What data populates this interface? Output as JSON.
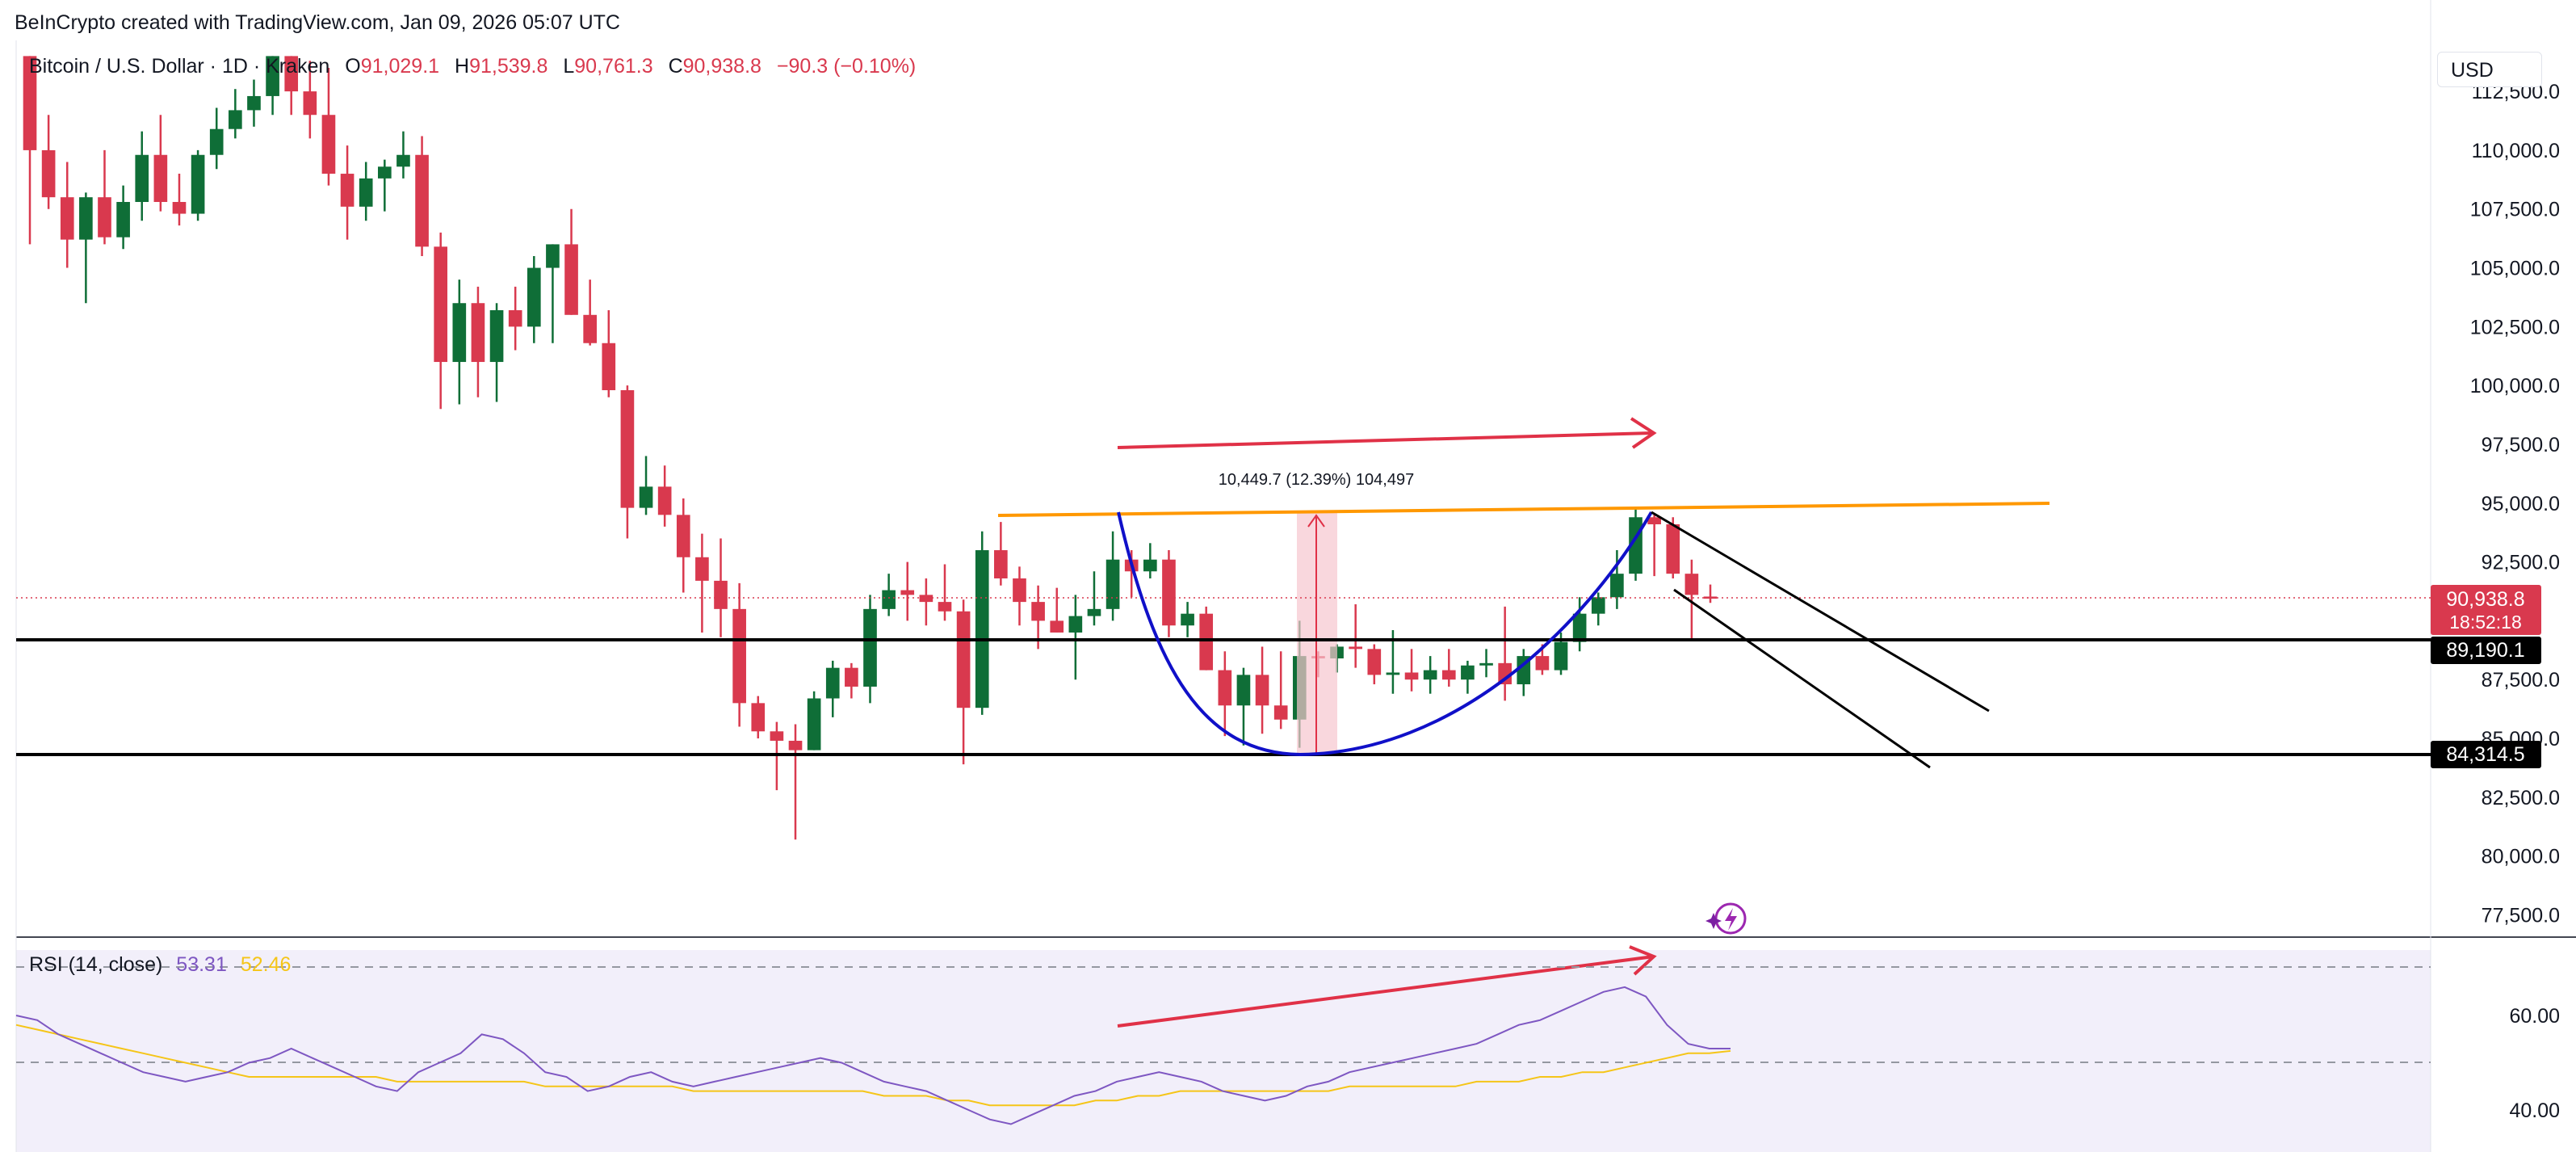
{
  "header": {
    "attribution": "BeInCrypto created with TradingView.com, Jan 09, 2026 05:07 UTC",
    "symbol": "Bitcoin / U.S. Dollar · 1D · Kraken",
    "open_label": "O",
    "open": "91,029.1",
    "high_label": "H",
    "high": "91,539.8",
    "low_label": "L",
    "low": "90,761.3",
    "close_label": "C",
    "close": "90,938.8",
    "change": "−90.3 (−0.10%)"
  },
  "currency_button": "USD",
  "colors": {
    "up": "#0f6e37",
    "down": "#d9394e",
    "wave": "#1010c8",
    "resistance": "#ff9800",
    "arrow": "#e03147",
    "rsi": "#7e57c2",
    "rsi_ma": "#f5c518"
  },
  "annotations": {
    "range_measure": "10,449.7 (12.39%) 104,497",
    "price_tag_current": "90,938.8",
    "price_tag_timer": "18:52:18",
    "price_tag_support": "89,190.1",
    "price_tag_low": "84,314.5"
  },
  "rsi": {
    "label": "RSI (14, close)",
    "value": "53.31",
    "ma_value": "52.46"
  },
  "chart_data": [
    {
      "type": "candlestick",
      "title": "Bitcoin / U.S. Dollar · 1D · Kraken",
      "ylim": [
        76000,
        114000
      ],
      "y_ticks": [
        112500,
        110000,
        107500,
        105000,
        102500,
        100000,
        97500,
        95000,
        92500,
        87500,
        85000,
        82500,
        80000,
        77500
      ],
      "y_tick_labels": [
        "112,500.0",
        "110,000.0",
        "107,500.0",
        "105,000.0",
        "102,500.0",
        "100,000.0",
        "97,500.0",
        "95,000.0",
        "92,500.0",
        "87,500.0",
        "85,000.0",
        "82,500.0",
        "80,000.0",
        "77,500.0"
      ],
      "horizontal_levels": [
        89190.1,
        84314.5
      ],
      "current_price": 90938.8,
      "ohlc": [
        [
          114000,
          114000,
          106000,
          110000
        ],
        [
          110000,
          111500,
          107500,
          108000
        ],
        [
          108000,
          109500,
          105000,
          106200
        ],
        [
          106200,
          108200,
          103500,
          108000
        ],
        [
          108000,
          110000,
          106000,
          106300
        ],
        [
          106300,
          108500,
          105800,
          107800
        ],
        [
          107800,
          110800,
          107000,
          109800
        ],
        [
          109800,
          111500,
          107400,
          107800
        ],
        [
          107800,
          109000,
          106800,
          107300
        ],
        [
          107300,
          110000,
          107000,
          109800
        ],
        [
          109800,
          111800,
          109200,
          110900
        ],
        [
          110900,
          112600,
          110500,
          111700
        ],
        [
          111700,
          113000,
          111000,
          112300
        ],
        [
          112300,
          114000,
          111500,
          114000
        ],
        [
          114000,
          114000,
          111500,
          112500
        ],
        [
          112500,
          113800,
          110500,
          111500
        ],
        [
          111500,
          113500,
          108500,
          109000
        ],
        [
          109000,
          110200,
          106200,
          107600
        ],
        [
          107600,
          109500,
          107000,
          108800
        ],
        [
          108800,
          109600,
          107400,
          109300
        ],
        [
          109300,
          110800,
          108800,
          109800
        ],
        [
          109800,
          110600,
          105500,
          105900
        ],
        [
          105900,
          106500,
          99000,
          101000
        ],
        [
          101000,
          104500,
          99200,
          103500
        ],
        [
          103500,
          104200,
          99500,
          101000
        ],
        [
          101000,
          103500,
          99300,
          103200
        ],
        [
          103200,
          104200,
          101500,
          102500
        ],
        [
          102500,
          105500,
          101800,
          105000
        ],
        [
          105000,
          106000,
          101800,
          106000
        ],
        [
          106000,
          107500,
          103000,
          103000
        ],
        [
          103000,
          104500,
          101700,
          101800
        ],
        [
          101800,
          103200,
          99500,
          99800
        ],
        [
          99800,
          100000,
          93500,
          94800
        ],
        [
          94800,
          97000,
          94500,
          95700
        ],
        [
          95700,
          96600,
          94000,
          94500
        ],
        [
          94500,
          95200,
          91200,
          92700
        ],
        [
          92700,
          93700,
          89500,
          91700
        ],
        [
          91700,
          93500,
          89300,
          90500
        ],
        [
          90500,
          91600,
          85500,
          86500
        ],
        [
          86500,
          86800,
          85000,
          85300
        ],
        [
          85300,
          85700,
          82800,
          84900
        ],
        [
          84900,
          85600,
          80700,
          84500
        ],
        [
          84500,
          87000,
          84500,
          86700
        ],
        [
          86700,
          88300,
          85900,
          88000
        ],
        [
          88000,
          88200,
          86700,
          87200
        ],
        [
          87200,
          91100,
          86500,
          90500
        ],
        [
          90500,
          92000,
          90200,
          91300
        ],
        [
          91300,
          92500,
          90000,
          91100
        ],
        [
          91100,
          91800,
          89800,
          90800
        ],
        [
          90800,
          92400,
          90000,
          90400
        ],
        [
          90400,
          90900,
          83900,
          86300
        ],
        [
          86300,
          93800,
          86000,
          93000
        ],
        [
          93000,
          94200,
          91500,
          91800
        ],
        [
          91800,
          92300,
          89800,
          90800
        ],
        [
          90800,
          91500,
          88800,
          90000
        ],
        [
          90000,
          91400,
          89500,
          89500
        ],
        [
          89500,
          91100,
          87500,
          90200
        ],
        [
          90200,
          92100,
          89800,
          90500
        ],
        [
          90500,
          93800,
          90000,
          92600
        ],
        [
          92600,
          93000,
          91000,
          92100
        ],
        [
          92100,
          93300,
          91800,
          92600
        ],
        [
          92600,
          93000,
          89300,
          89800
        ],
        [
          89800,
          90800,
          89300,
          90300
        ],
        [
          90300,
          90600,
          87900,
          87900
        ],
        [
          87900,
          88700,
          85100,
          86400
        ],
        [
          86400,
          88000,
          84700,
          87700
        ],
        [
          87700,
          88900,
          85200,
          86400
        ],
        [
          86400,
          88700,
          85400,
          85800
        ],
        [
          85800,
          90000,
          84600,
          88500
        ],
        [
          88500,
          88700,
          87600,
          88400
        ],
        [
          88400,
          89000,
          87800,
          88900
        ],
        [
          88900,
          90700,
          88000,
          88800
        ],
        [
          88800,
          89000,
          87300,
          87700
        ],
        [
          87700,
          89600,
          86900,
          87800
        ],
        [
          87800,
          88800,
          87000,
          87500
        ],
        [
          87500,
          88500,
          86900,
          87900
        ],
        [
          87900,
          88800,
          87200,
          87500
        ],
        [
          87500,
          88300,
          86900,
          88100
        ],
        [
          88100,
          88800,
          87600,
          88200
        ],
        [
          88200,
          90600,
          86600,
          87300
        ],
        [
          87300,
          88800,
          86800,
          88500
        ],
        [
          88500,
          89000,
          87700,
          87900
        ],
        [
          87900,
          89500,
          87700,
          89100
        ],
        [
          89100,
          91000,
          88700,
          90300
        ],
        [
          90300,
          91200,
          89800,
          91000
        ],
        [
          91000,
          93000,
          90500,
          92000
        ],
        [
          92000,
          94800,
          91700,
          94400
        ],
        [
          94400,
          94500,
          91900,
          94100
        ],
        [
          94100,
          94400,
          91800,
          92000
        ],
        [
          92000,
          92600,
          89200,
          91100
        ],
        [
          91029.1,
          91539.8,
          90761.3,
          90938.8
        ]
      ]
    },
    {
      "type": "line",
      "title": "RSI (14, close)",
      "ylim": [
        34,
        72
      ],
      "y_ticks": [
        60,
        40
      ],
      "y_tick_labels": [
        "60.00",
        "40.00"
      ],
      "reference_levels": [
        70,
        50,
        30
      ],
      "series": [
        {
          "name": "RSI (14, close)",
          "values": [
            60,
            59,
            56,
            54,
            52,
            50,
            48,
            47,
            46,
            47,
            48,
            50,
            51,
            53,
            51,
            49,
            47,
            45,
            44,
            48,
            50,
            52,
            56,
            55,
            52,
            48,
            47,
            44,
            45,
            47,
            48,
            46,
            45,
            46,
            47,
            48,
            49,
            50,
            51,
            50,
            48,
            46,
            45,
            44,
            42,
            40,
            38,
            37,
            39,
            41,
            43,
            44,
            46,
            47,
            48,
            47,
            46,
            44,
            43,
            42,
            43,
            45,
            46,
            48,
            49,
            50,
            51,
            52,
            53,
            54,
            56,
            58,
            59,
            61,
            63,
            65,
            66,
            64,
            58,
            54,
            53,
            53
          ]
        },
        {
          "name": "RSI-based MA",
          "values": [
            58,
            57,
            56,
            55,
            54,
            53,
            52,
            51,
            50,
            49,
            48,
            47,
            47,
            47,
            47,
            47,
            47,
            47,
            46,
            46,
            46,
            46,
            46,
            46,
            46,
            45,
            45,
            45,
            45,
            45,
            45,
            45,
            44,
            44,
            44,
            44,
            44,
            44,
            44,
            44,
            44,
            43,
            43,
            43,
            42,
            42,
            41,
            41,
            41,
            41,
            41,
            42,
            42,
            43,
            43,
            44,
            44,
            44,
            44,
            44,
            44,
            44,
            44,
            45,
            45,
            45,
            45,
            45,
            45,
            46,
            46,
            46,
            47,
            47,
            48,
            48,
            49,
            50,
            51,
            52,
            52,
            52.5
          ]
        }
      ]
    }
  ]
}
